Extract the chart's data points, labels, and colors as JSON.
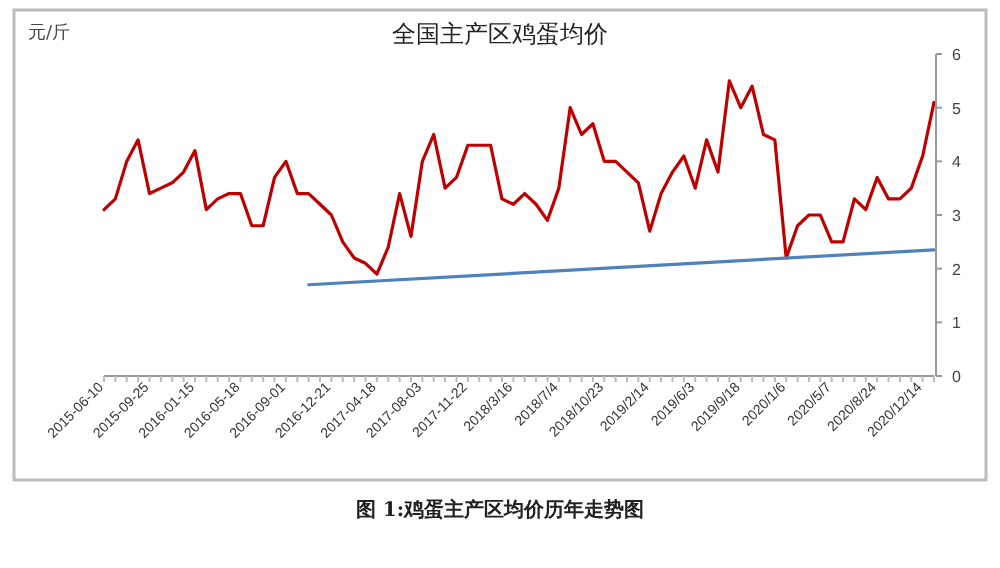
{
  "chart_data": {
    "type": "line",
    "title": "全国主产区鸡蛋均价",
    "ylabel": "元/斤",
    "annotations": [
      "图 1:鸡蛋主产区均价历年走势图"
    ],
    "categories": [
      "2015-06-10",
      null,
      null,
      null,
      "2015-09-25",
      null,
      null,
      null,
      "2016-01-15",
      null,
      null,
      null,
      "2016-05-18",
      null,
      null,
      null,
      "2016-09-01",
      null,
      null,
      null,
      "2016-12-21",
      null,
      null,
      null,
      "2017-04-18",
      null,
      null,
      null,
      "2017-08-03",
      null,
      null,
      null,
      "2017-11-22",
      null,
      null,
      null,
      "2018/3/16",
      null,
      null,
      null,
      "2018/7/4",
      null,
      null,
      null,
      "2018/10/23",
      null,
      null,
      null,
      "2019/2/14",
      null,
      null,
      null,
      "2019/6/3",
      null,
      null,
      null,
      "2019/9/18",
      null,
      null,
      null,
      "2020/1/6",
      null,
      null,
      null,
      "2020/5/7",
      null,
      null,
      null,
      "2020/8/24",
      null,
      null,
      null,
      "2020/12/14",
      null
    ],
    "ylim": [
      0,
      6
    ],
    "yticks": [
      0,
      1,
      2,
      3,
      4,
      5,
      6
    ],
    "series": [
      {
        "color": "#c00000",
        "values": [
          3.1,
          3.3,
          4.0,
          4.4,
          3.4,
          3.5,
          3.6,
          3.8,
          4.2,
          3.1,
          3.3,
          3.4,
          3.4,
          2.8,
          2.8,
          3.7,
          4.0,
          3.4,
          3.4,
          3.2,
          3.0,
          2.5,
          2.2,
          2.1,
          1.9,
          2.4,
          3.4,
          2.6,
          4.0,
          4.5,
          3.5,
          3.7,
          4.3,
          4.3,
          4.3,
          3.3,
          3.2,
          3.4,
          3.2,
          2.9,
          3.5,
          5.0,
          4.5,
          4.7,
          4.0,
          4.0,
          3.8,
          3.6,
          2.7,
          3.4,
          3.8,
          4.1,
          3.5,
          4.4,
          3.8,
          5.5,
          5.0,
          5.4,
          4.5,
          4.4,
          2.2,
          2.8,
          3.0,
          3.0,
          2.5,
          2.5,
          3.3,
          3.1,
          3.7,
          3.3,
          3.3,
          3.5,
          4.1,
          5.1
        ]
      },
      {
        "color": "#4f81bd",
        "values": [
          null,
          null,
          null,
          null,
          null,
          null,
          null,
          null,
          null,
          null,
          null,
          null,
          null,
          null,
          null,
          null,
          null,
          null,
          1.7,
          null,
          null,
          null,
          null,
          null,
          null,
          null,
          null,
          null,
          null,
          null,
          null,
          null,
          null,
          null,
          null,
          null,
          null,
          null,
          null,
          null,
          null,
          null,
          null,
          null,
          null,
          null,
          null,
          null,
          null,
          null,
          null,
          null,
          null,
          null,
          null,
          null,
          null,
          null,
          null,
          null,
          null,
          null,
          null,
          null,
          null,
          null,
          null,
          null,
          null,
          null,
          null,
          null,
          null,
          2.35
        ]
      }
    ]
  }
}
